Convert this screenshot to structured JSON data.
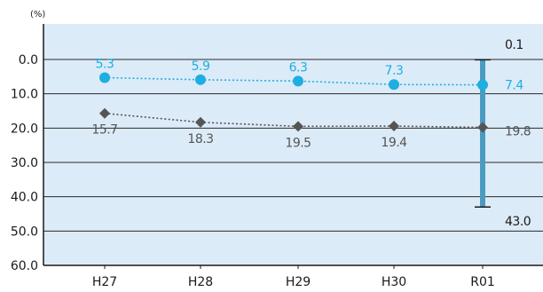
{
  "chart_data": {
    "type": "line",
    "categories": [
      "H27",
      "H28",
      "H29",
      "H30",
      "R01"
    ],
    "yunit": "(%)",
    "ylim": [
      0,
      60
    ],
    "y_inverted": true,
    "yticks": [
      "0.0",
      "10.0",
      "20.0",
      "30.0",
      "40.0",
      "50.0",
      "60.0"
    ],
    "grid": true,
    "background_color": "#dcebf8",
    "series": [
      {
        "values": [
          5.3,
          5.9,
          6.3,
          7.3,
          7.4
        ],
        "labels": [
          "5.3",
          "5.9",
          "6.3",
          "7.3",
          "7.4"
        ],
        "color": "#1eaee2",
        "marker": "circle",
        "label_position": "above"
      },
      {
        "values": [
          15.7,
          18.3,
          19.5,
          19.4,
          19.8
        ],
        "labels": [
          "15.7",
          "18.3",
          "19.5",
          "19.4",
          "19.8"
        ],
        "color": "#555555",
        "marker": "diamond",
        "label_position": "below"
      }
    ],
    "range_bar": {
      "category": "R01",
      "min": 0.1,
      "max": 43.0,
      "min_label": "0.1",
      "max_label": "43.0",
      "color": "#4a9bbf"
    }
  }
}
